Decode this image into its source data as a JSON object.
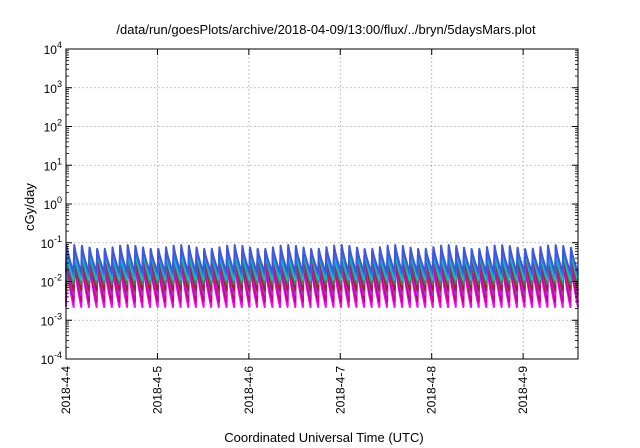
{
  "chart_data": {
    "type": "line",
    "title": "/data/run/goesPlots/archive/2018-04-09/13:00/flux/../bryn/5daysMars.plot",
    "xlabel": "Coordinated Universal Time (UTC)",
    "ylabel": "cGy/day",
    "yscale": "log",
    "ylim": [
      0.0001,
      10000
    ],
    "y_ticks": [
      {
        "value": 0.0001,
        "base": "10",
        "exp": "-4"
      },
      {
        "value": 0.001,
        "base": "10",
        "exp": "-3"
      },
      {
        "value": 0.01,
        "base": "10",
        "exp": "-2"
      },
      {
        "value": 0.1,
        "base": "10",
        "exp": "-1"
      },
      {
        "value": 1,
        "base": "10",
        "exp": "0"
      },
      {
        "value": 10,
        "base": "10",
        "exp": "1"
      },
      {
        "value": 100,
        "base": "10",
        "exp": "2"
      },
      {
        "value": 1000,
        "base": "10",
        "exp": "3"
      },
      {
        "value": 10000,
        "base": "10",
        "exp": "4"
      }
    ],
    "xlim": [
      0,
      5.6
    ],
    "x_ticks": [
      {
        "value": 0,
        "label": "2018-4-4"
      },
      {
        "value": 1,
        "label": "2018-4-5"
      },
      {
        "value": 2,
        "label": "2018-4-6"
      },
      {
        "value": 3,
        "label": "2018-4-7"
      },
      {
        "value": 4,
        "label": "2018-4-8"
      },
      {
        "value": 5,
        "label": "2018-4-9"
      }
    ],
    "grid": true,
    "cycles_per_day": 12,
    "series": [
      {
        "color": "#ff00ff",
        "peak": 0.028,
        "trough": 0.0022
      },
      {
        "color": "#cc0088",
        "peak": 0.035,
        "trough": 0.003
      },
      {
        "color": "#aa33cc",
        "peak": 0.045,
        "trough": 0.0045
      },
      {
        "color": "#a02030",
        "peak": 0.05,
        "trough": 0.006
      },
      {
        "color": "#2e8b57",
        "peak": 0.055,
        "trough": 0.0085
      },
      {
        "color": "#00cccc",
        "peak": 0.062,
        "trough": 0.011
      },
      {
        "color": "#2288ee",
        "peak": 0.07,
        "trough": 0.014
      },
      {
        "color": "#4455dd",
        "peak": 0.078,
        "trough": 0.017
      }
    ]
  }
}
